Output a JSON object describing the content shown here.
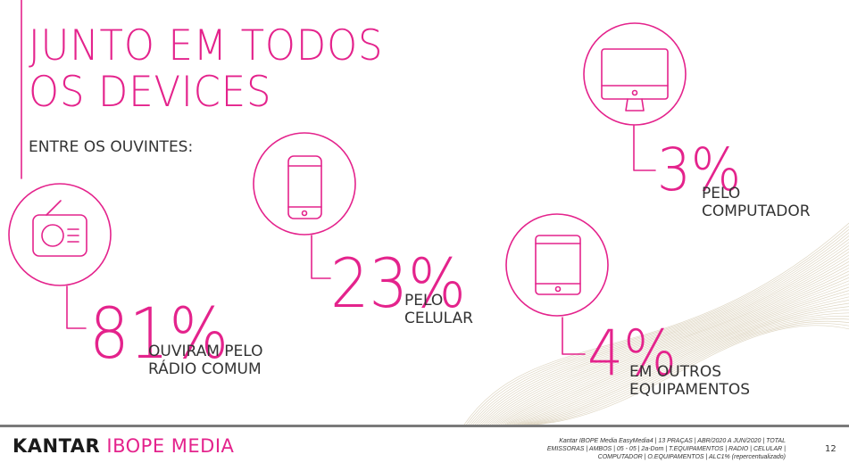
{
  "title": {
    "line1": "JUNTO EM TODOS",
    "line2": "OS DEVICES"
  },
  "subtitle": "ENTRE OS OUVINTES:",
  "accent_color": "#e4238c",
  "stats": {
    "radio": {
      "percent": "81%",
      "label_line1": "OUVIRAM PELO",
      "label_line2": "RÁDIO COMUM",
      "icon": "radio-icon"
    },
    "celular": {
      "percent": "23%",
      "label_line1": "PELO",
      "label_line2": "CELULAR",
      "icon": "smartphone-icon"
    },
    "computador": {
      "percent": "3%",
      "label_line1": "PELO",
      "label_line2": "COMPUTADOR",
      "icon": "desktop-monitor-icon"
    },
    "outros": {
      "percent": "4%",
      "label_line1": "EM OUTROS",
      "label_line2": "EQUIPAMENTOS",
      "icon": "tablet-icon"
    }
  },
  "footer": {
    "logo_part1": "KANTAR",
    "logo_part2": "IBOPE MEDIA",
    "source_line1": "Kantar IBOPE Media EasyMedia4 | 13 PRAÇAS | ABR/2020 A JUN/2020 | TOTAL",
    "source_line2": "EMISSORAS | AMBOS | 05 - 05 | 2a-Dom | T.EQUIPAMENTOS | RADIO | CELULAR |",
    "source_line3": "COMPUTADOR | O.EQUIPAMENTOS | ALC1% (repercentualizado)",
    "page_number": "12"
  }
}
